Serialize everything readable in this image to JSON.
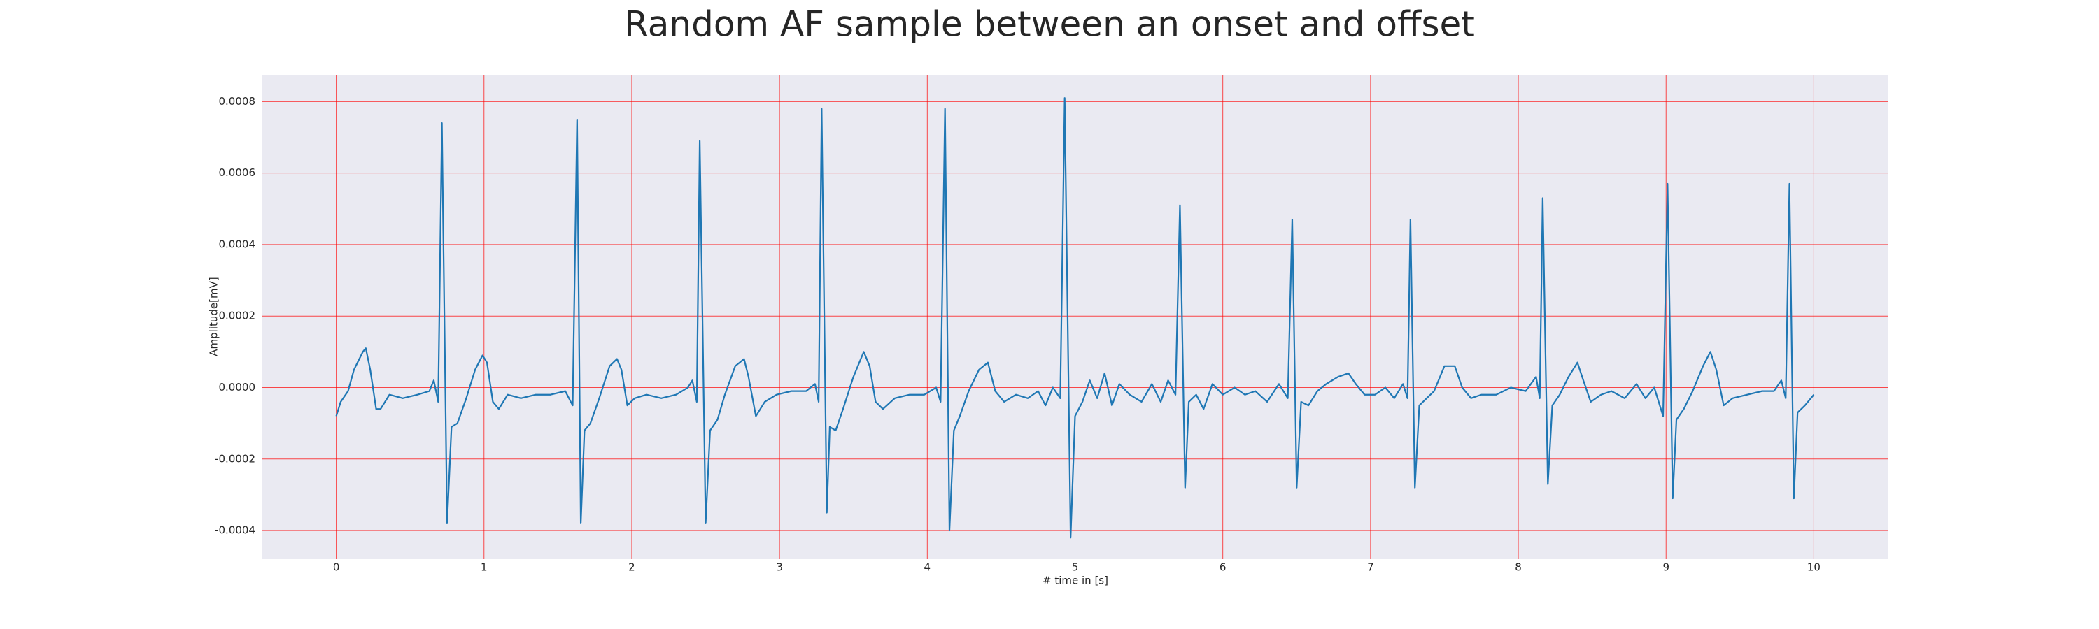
{
  "chart_data": {
    "type": "line",
    "title": "Random AF sample between an onset and offset",
    "x_label": "# time in [s]",
    "y_label": "Amplitude[mV]",
    "color": "#1f77b4",
    "grid": true,
    "grid_color": "#ff0000",
    "background": "#eaeaf2",
    "xlim": [
      -0.5,
      10.5
    ],
    "ylim": [
      -0.00048,
      0.000875
    ],
    "xticks": [
      0,
      1,
      2,
      3,
      4,
      5,
      6,
      7,
      8,
      9,
      10
    ],
    "yticks": [
      -0.0004,
      -0.0002,
      {
        "value": 0,
        "label": "0.0000"
      },
      0.0002,
      0.0004,
      0.0006,
      0.0008
    ],
    "x": [
      0,
      0.03,
      0.08,
      0.12,
      0.18,
      0.2,
      0.23,
      0.27,
      0.3,
      0.36,
      0.45,
      0.55,
      0.63,
      0.66,
      0.69,
      0.715,
      0.75,
      0.78,
      0.82,
      0.88,
      0.94,
      0.99,
      1.02,
      1.06,
      1.1,
      1.16,
      1.25,
      1.35,
      1.45,
      1.55,
      1.6,
      1.63,
      1.655,
      1.68,
      1.72,
      1.78,
      1.85,
      1.9,
      1.93,
      1.97,
      2.02,
      2.1,
      2.2,
      2.3,
      2.38,
      2.41,
      2.44,
      2.46,
      2.5,
      2.53,
      2.58,
      2.63,
      2.7,
      2.76,
      2.79,
      2.84,
      2.9,
      2.98,
      3.08,
      3.18,
      3.24,
      3.265,
      3.285,
      3.32,
      3.34,
      3.38,
      3.43,
      3.5,
      3.57,
      3.61,
      3.65,
      3.7,
      3.78,
      3.88,
      3.98,
      4.06,
      4.09,
      4.12,
      4.15,
      4.18,
      4.22,
      4.28,
      4.35,
      4.41,
      4.46,
      4.52,
      4.6,
      4.68,
      4.75,
      4.8,
      4.85,
      4.9,
      4.93,
      4.97,
      5.0,
      5.05,
      5.1,
      5.15,
      5.2,
      5.25,
      5.3,
      5.37,
      5.45,
      5.52,
      5.58,
      5.63,
      5.68,
      5.71,
      5.745,
      5.77,
      5.82,
      5.87,
      5.93,
      6.0,
      6.08,
      6.15,
      6.22,
      6.3,
      6.38,
      6.44,
      6.47,
      6.5,
      6.53,
      6.58,
      6.64,
      6.7,
      6.78,
      6.85,
      6.9,
      6.96,
      7.03,
      7.1,
      7.16,
      7.22,
      7.25,
      7.27,
      7.3,
      7.33,
      7.38,
      7.43,
      7.5,
      7.57,
      7.62,
      7.68,
      7.75,
      7.85,
      7.95,
      8.05,
      8.12,
      8.145,
      8.165,
      8.2,
      8.23,
      8.28,
      8.34,
      8.4,
      8.44,
      8.49,
      8.56,
      8.63,
      8.72,
      8.8,
      8.86,
      8.92,
      8.98,
      9.01,
      9.045,
      9.07,
      9.12,
      9.18,
      9.25,
      9.3,
      9.34,
      9.39,
      9.45,
      9.55,
      9.65,
      9.73,
      9.78,
      9.81,
      9.835,
      9.865,
      9.89,
      9.94,
      10.0
    ],
    "values": [
      -8e-05,
      -4e-05,
      -1e-05,
      5e-05,
      0.0001,
      0.00011,
      5e-05,
      -6e-05,
      -6e-05,
      -2e-05,
      -3e-05,
      -2e-05,
      -1e-05,
      2e-05,
      -4e-05,
      0.00074,
      -0.00038,
      -0.00011,
      -0.0001,
      -3e-05,
      5e-05,
      9e-05,
      7e-05,
      -4e-05,
      -6e-05,
      -2e-05,
      -3e-05,
      -2e-05,
      -2e-05,
      -1e-05,
      -5e-05,
      0.00075,
      -0.00038,
      -0.00012,
      -0.0001,
      -3e-05,
      6e-05,
      8e-05,
      5e-05,
      -5e-05,
      -3e-05,
      -2e-05,
      -3e-05,
      -2e-05,
      0,
      2e-05,
      -4e-05,
      0.00069,
      -0.00038,
      -0.00012,
      -9e-05,
      -2e-05,
      6e-05,
      8e-05,
      3e-05,
      -8e-05,
      -4e-05,
      -2e-05,
      -1e-05,
      -1e-05,
      1e-05,
      -4e-05,
      0.00078,
      -0.00035,
      -0.00011,
      -0.00012,
      -6e-05,
      3e-05,
      0.0001,
      6e-05,
      -4e-05,
      -6e-05,
      -3e-05,
      -2e-05,
      -2e-05,
      0,
      -4e-05,
      0.00078,
      -0.0004,
      -0.00012,
      -8e-05,
      -1e-05,
      5e-05,
      7e-05,
      -1e-05,
      -4e-05,
      -2e-05,
      -3e-05,
      -1e-05,
      -5e-05,
      0,
      -3e-05,
      0.00081,
      -0.00042,
      -8e-05,
      -4e-05,
      2e-05,
      -3e-05,
      4e-05,
      -5e-05,
      1e-05,
      -2e-05,
      -4e-05,
      1e-05,
      -4e-05,
      2e-05,
      -2e-05,
      0.00051,
      -0.00028,
      -4e-05,
      -2e-05,
      -6e-05,
      1e-05,
      -2e-05,
      0,
      -2e-05,
      -1e-05,
      -4e-05,
      1e-05,
      -3e-05,
      0.00047,
      -0.00028,
      -4e-05,
      -5e-05,
      -1e-05,
      1e-05,
      3e-05,
      4e-05,
      1e-05,
      -2e-05,
      -2e-05,
      0,
      -3e-05,
      1e-05,
      -3e-05,
      0.00047,
      -0.00028,
      -5e-05,
      -3e-05,
      -1e-05,
      6e-05,
      6e-05,
      0,
      -3e-05,
      -2e-05,
      -2e-05,
      0,
      -1e-05,
      3e-05,
      -3e-05,
      0.00053,
      -0.00027,
      -5e-05,
      -2e-05,
      3e-05,
      7e-05,
      2e-05,
      -4e-05,
      -2e-05,
      -1e-05,
      -3e-05,
      1e-05,
      -3e-05,
      0,
      -8e-05,
      0.00057,
      -0.00031,
      -9e-05,
      -6e-05,
      -1e-05,
      6e-05,
      0.0001,
      5e-05,
      -5e-05,
      -3e-05,
      -2e-05,
      -1e-05,
      -1e-05,
      2e-05,
      -3e-05,
      0.00057,
      -0.00031,
      -7e-05,
      -5e-05,
      -2e-05
    ]
  }
}
